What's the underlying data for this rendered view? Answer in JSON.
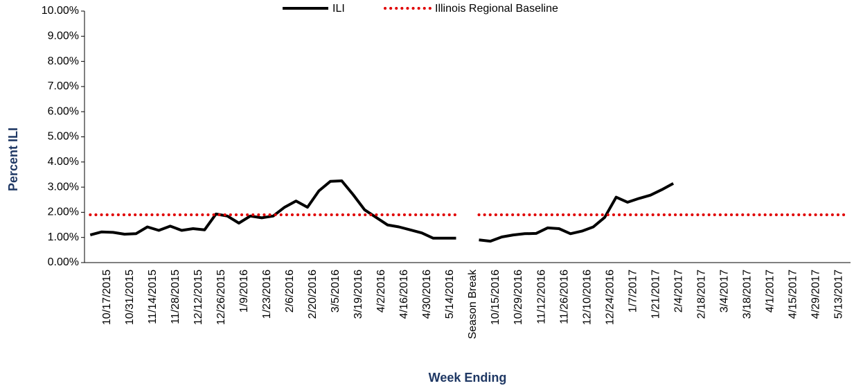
{
  "chart_data": {
    "type": "line",
    "x_label": "Week Ending",
    "y_label": "Percent ILI",
    "categories": [
      null,
      "10/17/2015",
      null,
      "10/31/2015",
      null,
      "11/14/2015",
      null,
      "11/28/2015",
      null,
      "12/12/2015",
      null,
      "12/26/2015",
      null,
      "1/9/2016",
      null,
      "1/23/2016",
      null,
      "2/6/2016",
      null,
      "2/20/2016",
      null,
      "3/5/2016",
      null,
      "3/19/2016",
      null,
      "4/2/2016",
      null,
      "4/16/2016",
      null,
      "4/30/2016",
      null,
      "5/14/2016",
      null,
      "Season Break",
      null,
      "10/15/2016",
      null,
      "10/29/2016",
      null,
      "11/12/2016",
      null,
      "11/26/2016",
      null,
      "12/10/2016",
      null,
      "12/24/2016",
      null,
      "1/7/2017",
      null,
      "1/21/2017",
      null,
      "2/4/2017",
      null,
      "2/18/2017",
      null,
      "3/4/2017",
      null,
      "3/18/2017",
      null,
      "4/1/2017",
      null,
      "4/15/2017",
      null,
      "4/29/2017",
      null,
      "5/13/2017",
      null
    ],
    "series": [
      {
        "name": "ILI",
        "color": "#000000",
        "style": "solid",
        "values": [
          1.1,
          1.22,
          1.2,
          1.13,
          1.15,
          1.42,
          1.28,
          1.45,
          1.28,
          1.35,
          1.3,
          1.93,
          1.85,
          1.57,
          1.85,
          1.78,
          1.85,
          2.2,
          2.45,
          2.2,
          2.85,
          3.23,
          3.25,
          2.7,
          2.1,
          1.8,
          1.5,
          1.42,
          1.3,
          1.18,
          0.97,
          0.97,
          0.97,
          null,
          0.9,
          0.85,
          1.02,
          1.1,
          1.15,
          1.16,
          1.38,
          1.35,
          1.15,
          1.25,
          1.42,
          1.8,
          2.6,
          2.4,
          2.55,
          2.68,
          2.9,
          3.15,
          null,
          null,
          null,
          null,
          null,
          null,
          null,
          null,
          null,
          null,
          null,
          null,
          null,
          null,
          null
        ]
      },
      {
        "name": "Illinois Regional Baseline",
        "color": "#e00000",
        "style": "dotted",
        "values": [
          1.9,
          1.9,
          1.9,
          1.9,
          1.9,
          1.9,
          1.9,
          1.9,
          1.9,
          1.9,
          1.9,
          1.9,
          1.9,
          1.9,
          1.9,
          1.9,
          1.9,
          1.9,
          1.9,
          1.9,
          1.9,
          1.9,
          1.9,
          1.9,
          1.9,
          1.9,
          1.9,
          1.9,
          1.9,
          1.9,
          1.9,
          1.9,
          1.9,
          null,
          1.9,
          1.9,
          1.9,
          1.9,
          1.9,
          1.9,
          1.9,
          1.9,
          1.9,
          1.9,
          1.9,
          1.9,
          1.9,
          1.9,
          1.9,
          1.9,
          1.9,
          1.9,
          1.9,
          1.9,
          1.9,
          1.9,
          1.9,
          1.9,
          1.9,
          1.9,
          1.9,
          1.9,
          1.9,
          1.9,
          1.9,
          1.9,
          1.9
        ]
      }
    ],
    "ylim": [
      0,
      10
    ],
    "yticks": [
      {
        "value": 0,
        "label": "0.00%"
      },
      {
        "value": 1,
        "label": "1.00%"
      },
      {
        "value": 2,
        "label": "2.00%"
      },
      {
        "value": 3,
        "label": "3.00%"
      },
      {
        "value": 4,
        "label": "4.00%"
      },
      {
        "value": 5,
        "label": "5.00%"
      },
      {
        "value": 6,
        "label": "6.00%"
      },
      {
        "value": 7,
        "label": "7.00%"
      },
      {
        "value": 8,
        "label": "8.00%"
      },
      {
        "value": 9,
        "label": "9.00%"
      },
      {
        "value": 10,
        "label": "10.00%"
      }
    ],
    "grid": false,
    "legend": "top"
  }
}
